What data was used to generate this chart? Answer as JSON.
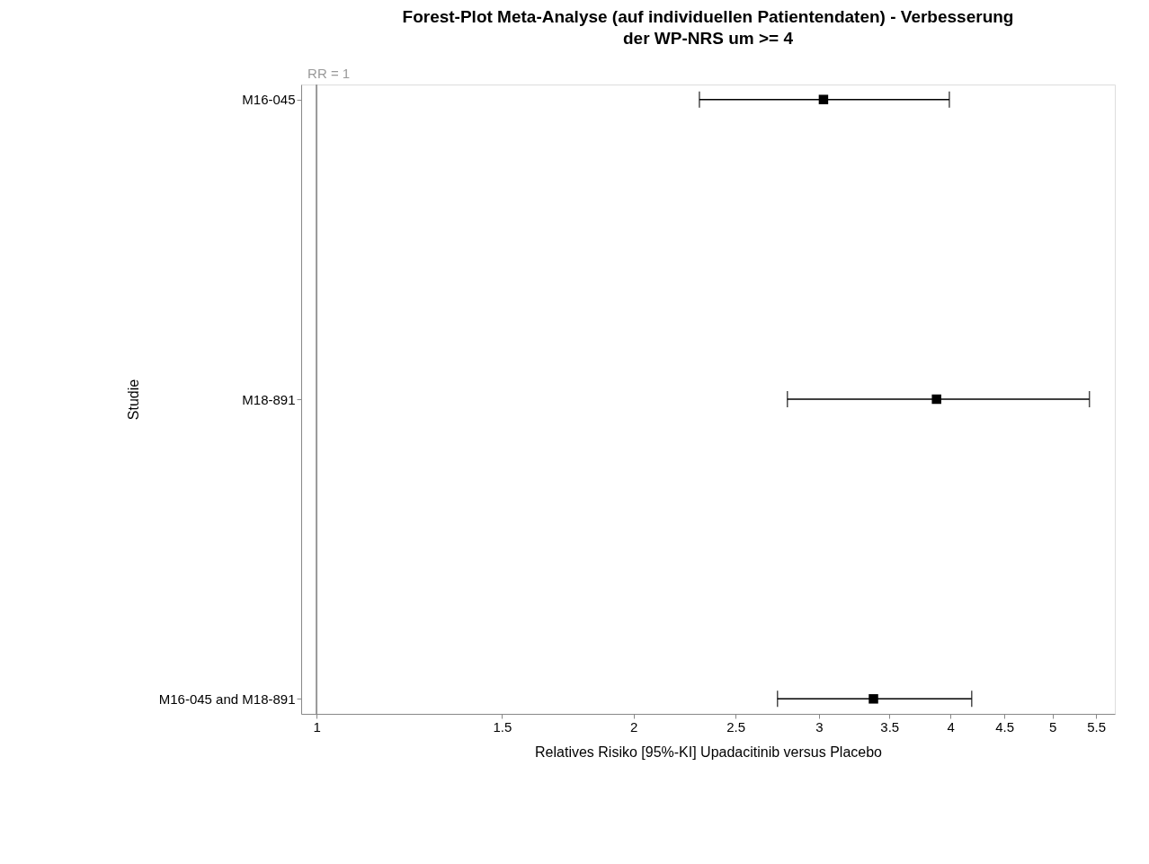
{
  "chart_data": {
    "type": "scatter",
    "orientation": "horizontal",
    "title": "Forest-Plot Meta-Analyse (auf individuellen Patientendaten) - Verbesserung der WP-NRS um >= 4",
    "xlabel": "Relatives Risiko [95%-KI] Upadacitinib versus Placebo",
    "ylabel": "Studie",
    "categories": [
      "M16-045",
      "M18-891",
      "M16-045 and M18-891"
    ],
    "series": [
      {
        "color": "#000000",
        "values": [
          3.03,
          3.88,
          3.38
        ],
        "errors": [
          [
            2.31,
            3.99
          ],
          [
            2.8,
            5.42
          ],
          [
            2.74,
            4.19
          ]
        ]
      }
    ],
    "log": "x",
    "xlim": [
      0.967,
      5.73
    ],
    "xticks": [
      1,
      1.5,
      2,
      2.5,
      3,
      3.5,
      4,
      4.5,
      5,
      5.5
    ],
    "ref_lines": [
      {
        "axis": "x",
        "value": 1,
        "label": "RR = 1",
        "color": "#999999"
      }
    ],
    "marker": "square",
    "grid": false,
    "legend": false
  }
}
